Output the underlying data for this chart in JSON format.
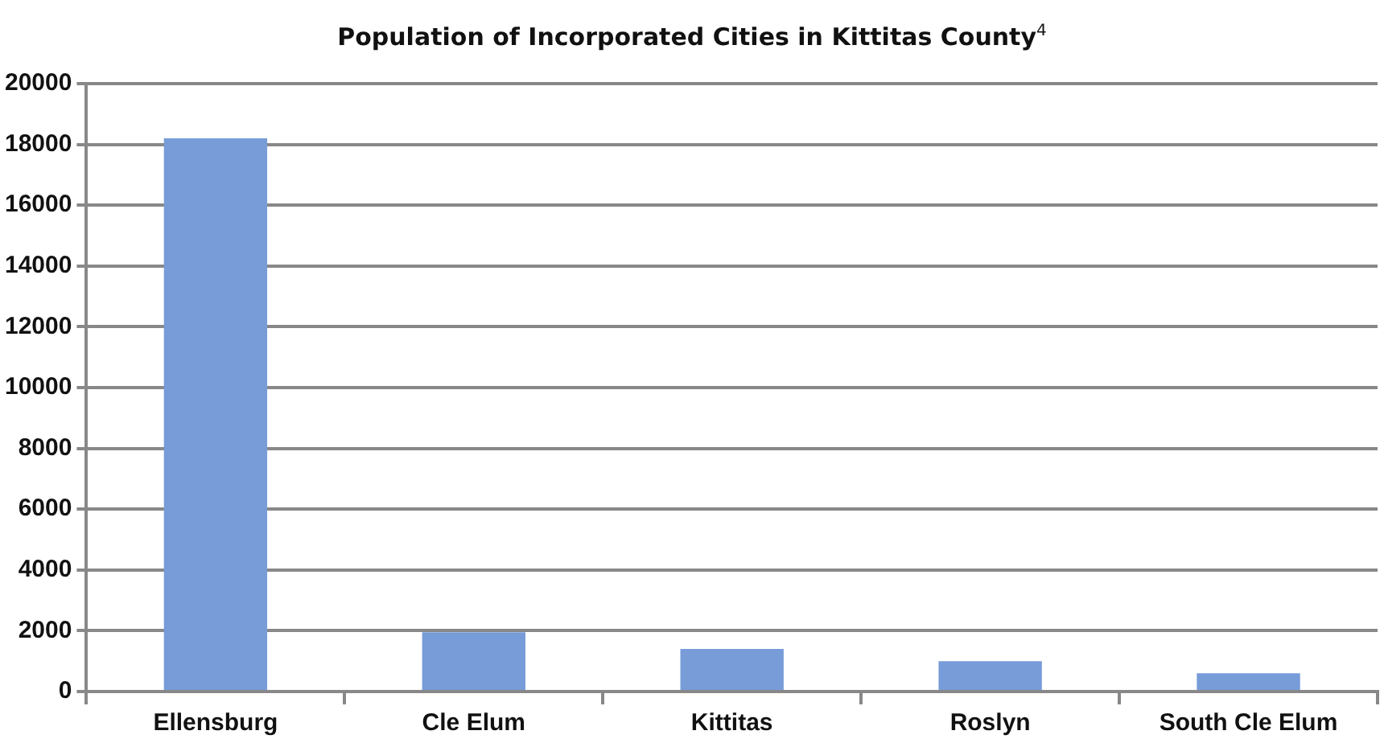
{
  "chart_data": {
    "type": "bar",
    "title": "Population of Incorporated Cities in Kittitas County$^{4}$",
    "categories": [
      "Ellensburg",
      "Cle Elum",
      "Kittitas",
      "Roslyn",
      "South Cle Elum"
    ],
    "values": [
      18200,
      1950,
      1400,
      1000,
      600
    ],
    "color": "#779cd8",
    "ylim": [
      0,
      20000
    ],
    "yticks": [
      0,
      2000,
      4000,
      6000,
      8000,
      10000,
      12000,
      14000,
      16000,
      18000,
      20000
    ],
    "grid": "y",
    "legend": false
  }
}
